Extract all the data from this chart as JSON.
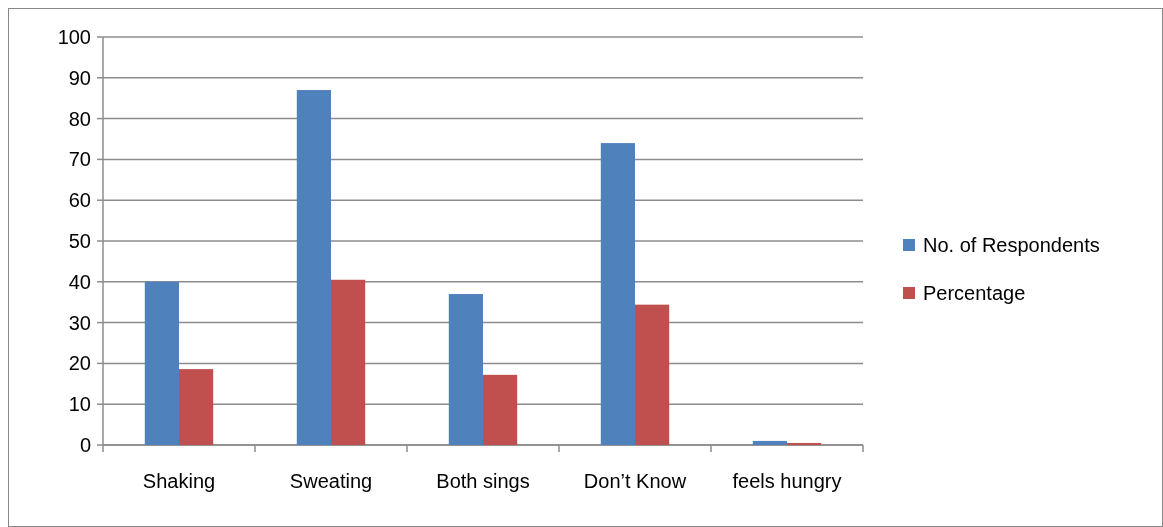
{
  "chart_data": {
    "type": "bar",
    "categories": [
      "Shaking",
      "Sweating",
      "Both sings",
      "Don’t Know",
      "feels hungry"
    ],
    "series": [
      {
        "name": "No. of Respondents",
        "color": "#4f81bd",
        "values": [
          40,
          87,
          37,
          74,
          1
        ]
      },
      {
        "name": "Percentage",
        "color": "#c0504d",
        "values": [
          18.6,
          40.5,
          17.2,
          34.4,
          0.5
        ]
      }
    ],
    "ylim": [
      0,
      100
    ],
    "yticks": [
      0,
      10,
      20,
      30,
      40,
      50,
      60,
      70,
      80,
      90,
      100
    ],
    "grid": "y",
    "legend": "right"
  }
}
